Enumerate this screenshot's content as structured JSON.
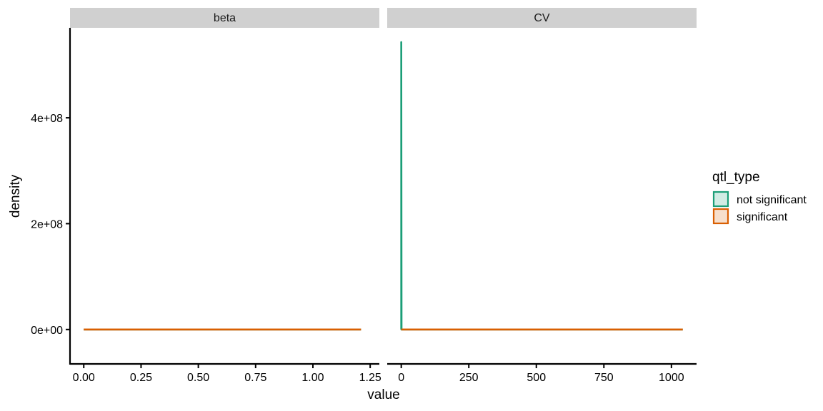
{
  "chart_data": {
    "type": "line",
    "title": "",
    "xlabel": "value",
    "ylabel": "density",
    "ylim": [
      -65000000,
      570000000
    ],
    "y_ticks": [
      {
        "value": 0,
        "label": "0e+00"
      },
      {
        "value": 200000000,
        "label": "2e+08"
      },
      {
        "value": 400000000,
        "label": "4e+08"
      }
    ],
    "grid": false,
    "legend": {
      "title": "qtl_type",
      "position": "right",
      "entries": [
        {
          "name": "not significant",
          "color": "#1b9e77",
          "fill": "#d1ece4"
        },
        {
          "name": "significant",
          "color": "#d95f02",
          "fill": "#f7dfcc"
        }
      ]
    },
    "panels": [
      {
        "label": "beta",
        "xlim": [
          -0.06,
          1.29
        ],
        "x_ticks": [
          {
            "value": 0.0,
            "label": "0.00"
          },
          {
            "value": 0.25,
            "label": "0.25"
          },
          {
            "value": 0.5,
            "label": "0.50"
          },
          {
            "value": 0.75,
            "label": "0.75"
          },
          {
            "value": 1.0,
            "label": "1.00"
          },
          {
            "value": 1.25,
            "label": "1.25"
          }
        ],
        "series": [
          {
            "name": "not significant",
            "color": "#1b9e77",
            "points": [
              [
                0.0,
                0
              ],
              [
                1.21,
                0
              ]
            ]
          },
          {
            "name": "significant",
            "color": "#d95f02",
            "points": [
              [
                0.0,
                0
              ],
              [
                1.21,
                0
              ]
            ]
          }
        ]
      },
      {
        "label": "CV",
        "xlim": [
          -52,
          1093
        ],
        "x_ticks": [
          {
            "value": 0,
            "label": "0"
          },
          {
            "value": 250,
            "label": "250"
          },
          {
            "value": 500,
            "label": "500"
          },
          {
            "value": 750,
            "label": "750"
          },
          {
            "value": 1000,
            "label": "1000"
          }
        ],
        "series": [
          {
            "name": "not significant",
            "color": "#1b9e77",
            "points": [
              [
                0,
                0
              ],
              [
                0.0,
                543000000
              ],
              [
                1,
                0
              ],
              [
                1042,
                0
              ]
            ]
          },
          {
            "name": "significant",
            "color": "#d95f02",
            "points": [
              [
                0,
                0
              ],
              [
                1042,
                0
              ]
            ]
          }
        ]
      }
    ]
  }
}
